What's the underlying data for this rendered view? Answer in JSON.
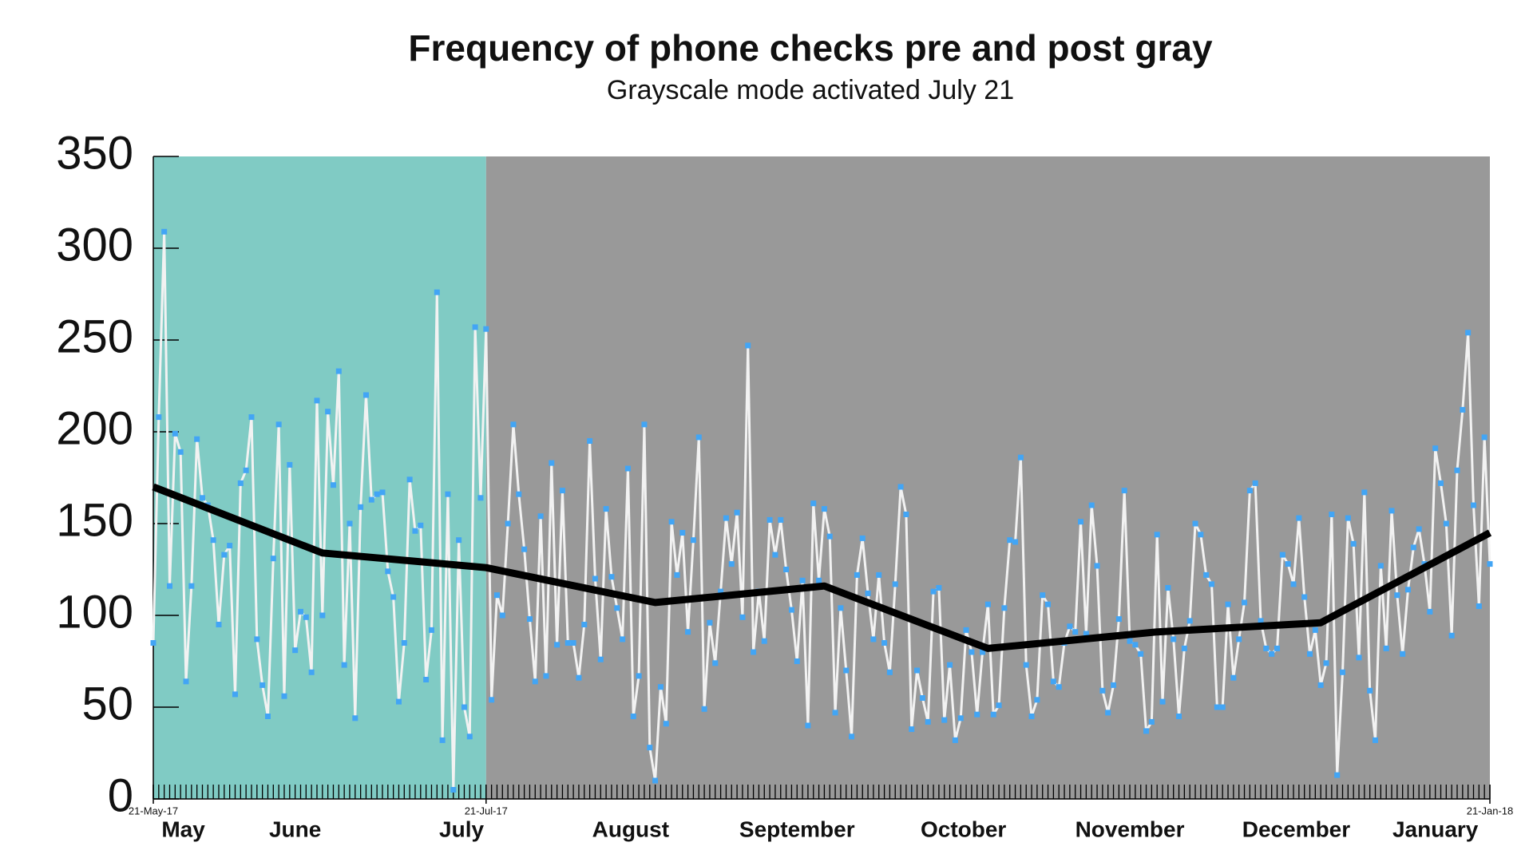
{
  "chart_data": {
    "type": "line",
    "title": "Frequency of phone checks pre and post gray",
    "subtitle": "Grayscale mode activated July 21",
    "xlim": [
      "2017-05-21",
      "2018-01-21"
    ],
    "ylim": [
      0,
      350
    ],
    "yticks": [
      0,
      50,
      100,
      150,
      200,
      250,
      300,
      350
    ],
    "xticks": [
      {
        "value": "2017-05-21",
        "label": "21-May-17"
      },
      {
        "value": "2017-07-21",
        "label": "21-Jul-17"
      },
      {
        "value": "2018-01-21",
        "label": "21-Jan-18"
      }
    ],
    "month_labels": [
      {
        "value": "2017-05",
        "label": "May"
      },
      {
        "value": "2017-06",
        "label": "June"
      },
      {
        "value": "2017-07",
        "label": "July"
      },
      {
        "value": "2017-08",
        "label": "August"
      },
      {
        "value": "2017-09",
        "label": "September"
      },
      {
        "value": "2017-10",
        "label": "October"
      },
      {
        "value": "2017-11",
        "label": "November"
      },
      {
        "value": "2017-12",
        "label": "December"
      },
      {
        "value": "2018-01",
        "label": "January"
      }
    ],
    "regions": [
      {
        "from": "2017-05-21",
        "to": "2017-07-21",
        "color": "#80cbc4"
      },
      {
        "from": "2017-07-21",
        "to": "2018-01-21",
        "color": "#999999"
      }
    ],
    "series": [
      {
        "color": "#f2f2f2",
        "marker_color": "#42a5f5",
        "x": [
          "2017-05-21",
          "2017-05-22",
          "2017-05-23",
          "2017-05-24",
          "2017-05-25",
          "2017-05-26",
          "2017-05-27",
          "2017-05-28",
          "2017-05-29",
          "2017-05-30",
          "2017-05-31",
          "2017-06-01",
          "2017-06-02",
          "2017-06-03",
          "2017-06-04",
          "2017-06-05",
          "2017-06-06",
          "2017-06-07",
          "2017-06-08",
          "2017-06-09",
          "2017-06-10",
          "2017-06-11",
          "2017-06-12",
          "2017-06-13",
          "2017-06-14",
          "2017-06-15",
          "2017-06-16",
          "2017-06-17",
          "2017-06-18",
          "2017-06-19",
          "2017-06-20",
          "2017-06-21",
          "2017-06-22",
          "2017-06-23",
          "2017-06-24",
          "2017-06-25",
          "2017-06-26",
          "2017-06-27",
          "2017-06-28",
          "2017-06-29",
          "2017-06-30",
          "2017-07-01",
          "2017-07-02",
          "2017-07-03",
          "2017-07-04",
          "2017-07-05",
          "2017-07-06",
          "2017-07-07",
          "2017-07-08",
          "2017-07-09",
          "2017-07-10",
          "2017-07-11",
          "2017-07-12",
          "2017-07-13",
          "2017-07-14",
          "2017-07-15",
          "2017-07-16",
          "2017-07-17",
          "2017-07-18",
          "2017-07-19",
          "2017-07-20",
          "2017-07-21",
          "2017-07-22",
          "2017-07-23",
          "2017-07-24",
          "2017-07-25",
          "2017-07-26",
          "2017-07-27",
          "2017-07-28",
          "2017-07-29",
          "2017-07-30",
          "2017-07-31",
          "2017-08-01",
          "2017-08-02",
          "2017-08-03",
          "2017-08-04",
          "2017-08-05",
          "2017-08-06",
          "2017-08-07",
          "2017-08-08",
          "2017-08-09",
          "2017-08-10",
          "2017-08-11",
          "2017-08-12",
          "2017-08-13",
          "2017-08-14",
          "2017-08-15",
          "2017-08-16",
          "2017-08-17",
          "2017-08-18",
          "2017-08-19",
          "2017-08-20",
          "2017-08-21",
          "2017-08-22",
          "2017-08-23",
          "2017-08-24",
          "2017-08-25",
          "2017-08-26",
          "2017-08-27",
          "2017-08-28",
          "2017-08-29",
          "2017-08-30",
          "2017-08-31",
          "2017-09-01",
          "2017-09-02",
          "2017-09-03",
          "2017-09-04",
          "2017-09-05",
          "2017-09-06",
          "2017-09-07",
          "2017-09-08",
          "2017-09-09",
          "2017-09-10",
          "2017-09-11",
          "2017-09-12",
          "2017-09-13",
          "2017-09-14",
          "2017-09-15",
          "2017-09-16",
          "2017-09-17",
          "2017-09-18",
          "2017-09-19",
          "2017-09-20",
          "2017-09-21",
          "2017-09-22",
          "2017-09-23",
          "2017-09-24",
          "2017-09-25",
          "2017-09-26",
          "2017-09-27",
          "2017-09-28",
          "2017-09-29",
          "2017-09-30",
          "2017-10-01",
          "2017-10-02",
          "2017-10-03",
          "2017-10-04",
          "2017-10-05",
          "2017-10-06",
          "2017-10-07",
          "2017-10-08",
          "2017-10-09",
          "2017-10-10",
          "2017-10-11",
          "2017-10-12",
          "2017-10-13",
          "2017-10-14",
          "2017-10-15",
          "2017-10-16",
          "2017-10-17",
          "2017-10-18",
          "2017-10-19",
          "2017-10-20",
          "2017-10-21",
          "2017-10-22",
          "2017-10-23",
          "2017-10-24",
          "2017-10-25",
          "2017-10-26",
          "2017-10-27",
          "2017-10-28",
          "2017-10-29",
          "2017-10-30",
          "2017-10-31",
          "2017-11-01",
          "2017-11-02",
          "2017-11-03",
          "2017-11-04",
          "2017-11-05",
          "2017-11-06",
          "2017-11-07",
          "2017-11-08",
          "2017-11-09",
          "2017-11-10",
          "2017-11-11",
          "2017-11-12",
          "2017-11-13",
          "2017-11-14",
          "2017-11-15",
          "2017-11-16",
          "2017-11-17",
          "2017-11-18",
          "2017-11-19",
          "2017-11-20",
          "2017-11-21",
          "2017-11-22",
          "2017-11-23",
          "2017-11-24",
          "2017-11-25",
          "2017-11-26",
          "2017-11-27",
          "2017-11-28",
          "2017-11-29",
          "2017-11-30",
          "2017-12-01",
          "2017-12-02",
          "2017-12-03",
          "2017-12-04",
          "2017-12-05",
          "2017-12-06",
          "2017-12-07",
          "2017-12-08",
          "2017-12-09",
          "2017-12-10",
          "2017-12-11",
          "2017-12-12",
          "2017-12-13",
          "2017-12-14",
          "2017-12-15",
          "2017-12-16",
          "2017-12-17",
          "2017-12-18",
          "2017-12-19",
          "2017-12-20",
          "2017-12-21",
          "2017-12-22",
          "2017-12-23",
          "2017-12-24",
          "2017-12-25",
          "2017-12-26",
          "2017-12-27",
          "2017-12-28",
          "2017-12-29",
          "2017-12-30",
          "2017-12-31",
          "2018-01-01",
          "2018-01-02",
          "2018-01-03",
          "2018-01-04",
          "2018-01-05",
          "2018-01-06",
          "2018-01-07",
          "2018-01-08",
          "2018-01-09",
          "2018-01-10",
          "2018-01-11",
          "2018-01-12",
          "2018-01-13",
          "2018-01-14",
          "2018-01-15",
          "2018-01-16",
          "2018-01-17",
          "2018-01-18",
          "2018-01-19",
          "2018-01-20",
          "2018-01-21"
        ],
        "values": [
          85,
          208,
          309,
          116,
          199,
          189,
          64,
          116,
          196,
          164,
          160,
          141,
          95,
          133,
          138,
          57,
          172,
          179,
          208,
          87,
          62,
          45,
          131,
          204,
          56,
          182,
          81,
          102,
          99,
          69,
          217,
          100,
          211,
          171,
          233,
          73,
          150,
          44,
          159,
          220,
          163,
          166,
          167,
          124,
          110,
          53,
          85,
          174,
          146,
          149,
          65,
          92,
          276,
          32,
          166,
          5,
          141,
          50,
          34,
          257,
          164,
          256,
          54,
          111,
          100,
          150,
          204,
          166,
          136,
          98,
          64,
          154,
          67,
          183,
          84,
          168,
          85,
          85,
          66,
          95,
          195,
          120,
          76,
          158,
          121,
          104,
          87,
          180,
          45,
          67,
          204,
          28,
          10,
          61,
          41,
          151,
          122,
          145,
          91,
          141,
          197,
          49,
          96,
          74,
          113,
          153,
          128,
          156,
          99,
          247,
          80,
          113,
          86,
          152,
          133,
          152,
          125,
          103,
          75,
          119,
          40,
          161,
          119,
          158,
          143,
          47,
          104,
          70,
          34,
          122,
          142,
          112,
          87,
          122,
          85,
          69,
          117,
          170,
          155,
          38,
          70,
          55,
          42,
          113,
          115,
          43,
          73,
          32,
          44,
          92,
          80,
          46,
          80,
          106,
          46,
          51,
          104,
          141,
          140,
          186,
          73,
          45,
          54,
          111,
          106,
          64,
          61,
          85,
          94,
          91,
          151,
          90,
          160,
          127,
          59,
          47,
          62,
          98,
          168,
          86,
          84,
          79,
          37,
          42,
          144,
          53,
          115,
          87,
          45,
          82,
          97,
          150,
          144,
          122,
          117,
          50,
          50,
          106,
          66,
          87,
          107,
          168,
          172,
          97,
          82,
          79,
          82,
          133,
          128,
          117,
          153,
          110,
          79,
          92,
          62,
          74,
          155,
          13,
          69,
          153,
          139,
          77,
          167,
          59,
          32,
          127,
          82,
          157,
          111,
          79,
          114,
          137,
          147,
          128,
          102,
          191,
          172,
          150,
          89,
          179,
          212,
          254,
          160,
          105,
          197,
          128
        ]
      },
      {
        "color": "#000000",
        "x": [
          "2017-05-21",
          "2017-06-21",
          "2017-07-21",
          "2017-08-21",
          "2017-09-21",
          "2017-10-21",
          "2017-11-21",
          "2017-12-21",
          "2018-01-21"
        ],
        "values": [
          170,
          134,
          126,
          107,
          116,
          82,
          91,
          96,
          145
        ]
      }
    ]
  }
}
